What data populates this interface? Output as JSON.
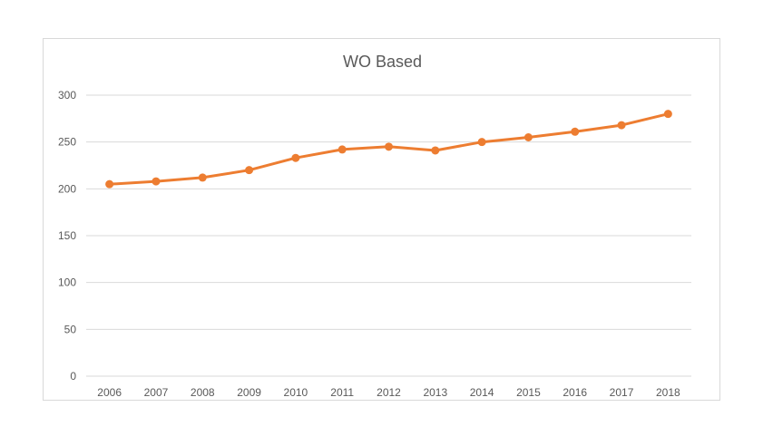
{
  "chart_data": {
    "type": "line",
    "title": "WO Based",
    "xlabel": "",
    "ylabel": "",
    "categories": [
      "2006",
      "2007",
      "2008",
      "2009",
      "2010",
      "2011",
      "2012",
      "2013",
      "2014",
      "2015",
      "2016",
      "2017",
      "2018"
    ],
    "series": [
      {
        "values": [
          205,
          208,
          212,
          220,
          233,
          242,
          245,
          241,
          250,
          255,
          261,
          268,
          280
        ],
        "color": "#ed7d31"
      }
    ],
    "ylim": [
      0,
      300
    ],
    "yticks": [
      "0",
      "50",
      "100",
      "150",
      "200",
      "250",
      "300"
    ],
    "grid": true,
    "legend": "none"
  }
}
